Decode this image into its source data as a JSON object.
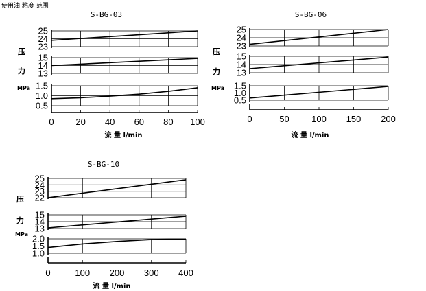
{
  "header_text": "使用油   粘度        范围",
  "chart_data": [
    {
      "type": "line",
      "title": "S-BG-03",
      "xlabel": "流 量 l/min",
      "ylabel_chars": [
        "压",
        "力"
      ],
      "yunit": "MPa",
      "xlim": [
        0,
        100
      ],
      "xticks": [
        "0",
        "20",
        "40",
        "60",
        "80",
        "100"
      ],
      "panels": [
        {
          "ylim": [
            23,
            25
          ],
          "yticks": [
            "25",
            "24",
            "23"
          ],
          "x": [
            0,
            100
          ],
          "y": [
            23.8,
            25.0
          ]
        },
        {
          "ylim": [
            13,
            15
          ],
          "yticks": [
            "15",
            "14",
            "13"
          ],
          "x": [
            0,
            100
          ],
          "y": [
            14.0,
            14.9
          ]
        },
        {
          "ylim": [
            0.5,
            1.5
          ],
          "yticks": [
            "1.5",
            "1.0",
            "0.5"
          ],
          "x": [
            0,
            20,
            40,
            60,
            80,
            100
          ],
          "y": [
            0.85,
            0.9,
            0.98,
            1.08,
            1.22,
            1.4
          ]
        }
      ]
    },
    {
      "type": "line",
      "title": "S-BG-06",
      "xlabel": "流 量 l/min",
      "ylabel_chars": [
        "压",
        "力"
      ],
      "yunit": "MPa",
      "xlim": [
        0,
        200
      ],
      "xticks": [
        "0",
        "50",
        "100",
        "150",
        "200"
      ],
      "panels": [
        {
          "ylim": [
            23,
            25
          ],
          "yticks": [
            "25",
            "24",
            "23"
          ],
          "x": [
            0,
            200
          ],
          "y": [
            23.2,
            25.0
          ]
        },
        {
          "ylim": [
            13,
            15
          ],
          "yticks": [
            "15",
            "14",
            "13"
          ],
          "x": [
            0,
            200
          ],
          "y": [
            13.5,
            14.9
          ]
        },
        {
          "ylim": [
            0.5,
            1.5
          ],
          "yticks": [
            "1.5",
            "1.0",
            "0.5"
          ],
          "x": [
            0,
            200
          ],
          "y": [
            0.65,
            1.45
          ]
        }
      ]
    },
    {
      "type": "line",
      "title": "S-BG-10",
      "xlabel": "流 量 l/min",
      "ylabel_chars": [
        "压",
        "力"
      ],
      "yunit": "MPa",
      "xlim": [
        0,
        400
      ],
      "xticks": [
        "0",
        "100",
        "200",
        "300",
        "400"
      ],
      "panels": [
        {
          "ylim": [
            22,
            25
          ],
          "yticks": [
            "25",
            "24",
            "23",
            "22"
          ],
          "x": [
            0,
            400
          ],
          "y": [
            22.0,
            24.8
          ]
        },
        {
          "ylim": [
            13,
            15
          ],
          "yticks": [
            "15",
            "14",
            "13"
          ],
          "x": [
            0,
            400
          ],
          "y": [
            13.1,
            14.8
          ]
        },
        {
          "ylim": [
            1.0,
            2.0
          ],
          "yticks": [
            "2.0",
            "1.5",
            "1.0"
          ],
          "x": [
            0,
            100,
            200,
            300,
            350,
            400
          ],
          "y": [
            1.4,
            1.65,
            1.82,
            1.95,
            1.98,
            1.98
          ]
        }
      ]
    }
  ]
}
